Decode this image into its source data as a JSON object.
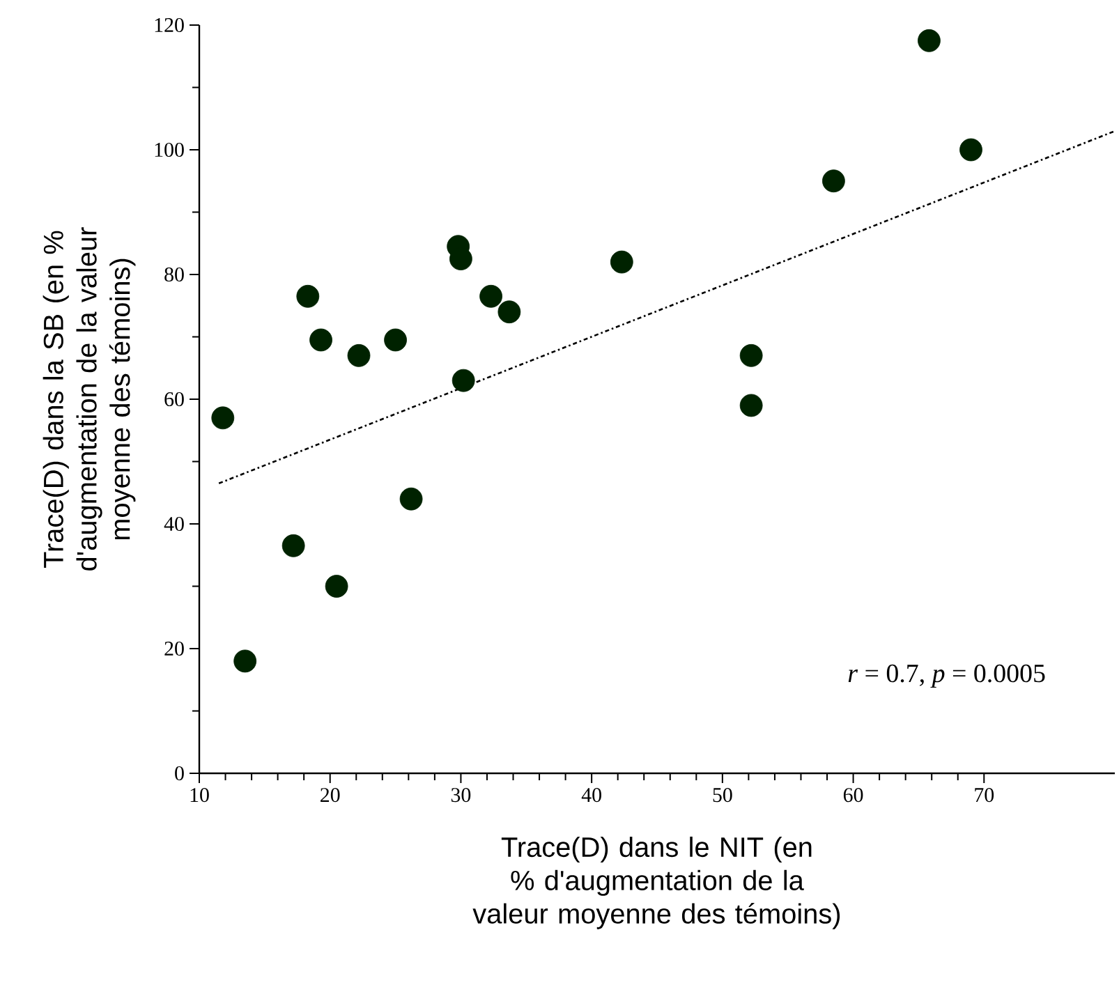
{
  "chart_data": {
    "type": "scatter",
    "xlabel": "Trace(D) dans le NIT (en % d'augmentation de la valeur moyenne des témoins)",
    "ylabel": "Trace(D) dans la SB (en % d'augmentation de la valeur moyenne des témoins)",
    "xlim": [
      10,
      80
    ],
    "xticks": [
      10,
      20,
      30,
      40,
      50,
      60,
      70
    ],
    "ylim": [
      0,
      120
    ],
    "yticks": [
      0,
      20,
      40,
      60,
      80,
      100,
      120
    ],
    "grid": false,
    "annotations": [
      "*r* = 0.7, *p* = 0.0005"
    ],
    "series": [
      {
        "marker": "circle",
        "color": "#002200",
        "x": [
          11.8,
          13.5,
          17.2,
          18.3,
          19.3,
          20.5,
          22.2,
          25,
          26.2,
          29.8,
          30,
          30.2,
          32.3,
          33.7,
          42.3,
          52.2,
          52.2,
          58.5,
          65.8,
          69
        ],
        "values": [
          57,
          18,
          36.5,
          76.5,
          69.5,
          30,
          67,
          69.5,
          44,
          84.5,
          82.5,
          63,
          76.5,
          74,
          82,
          67,
          59,
          95,
          117.5,
          100
        ]
      },
      {
        "type": "line",
        "marker": "none",
        "color": "#000000",
        "line_style": "dashed",
        "x": [
          11.5,
          80
        ],
        "values": [
          46.5,
          103
        ]
      }
    ]
  }
}
